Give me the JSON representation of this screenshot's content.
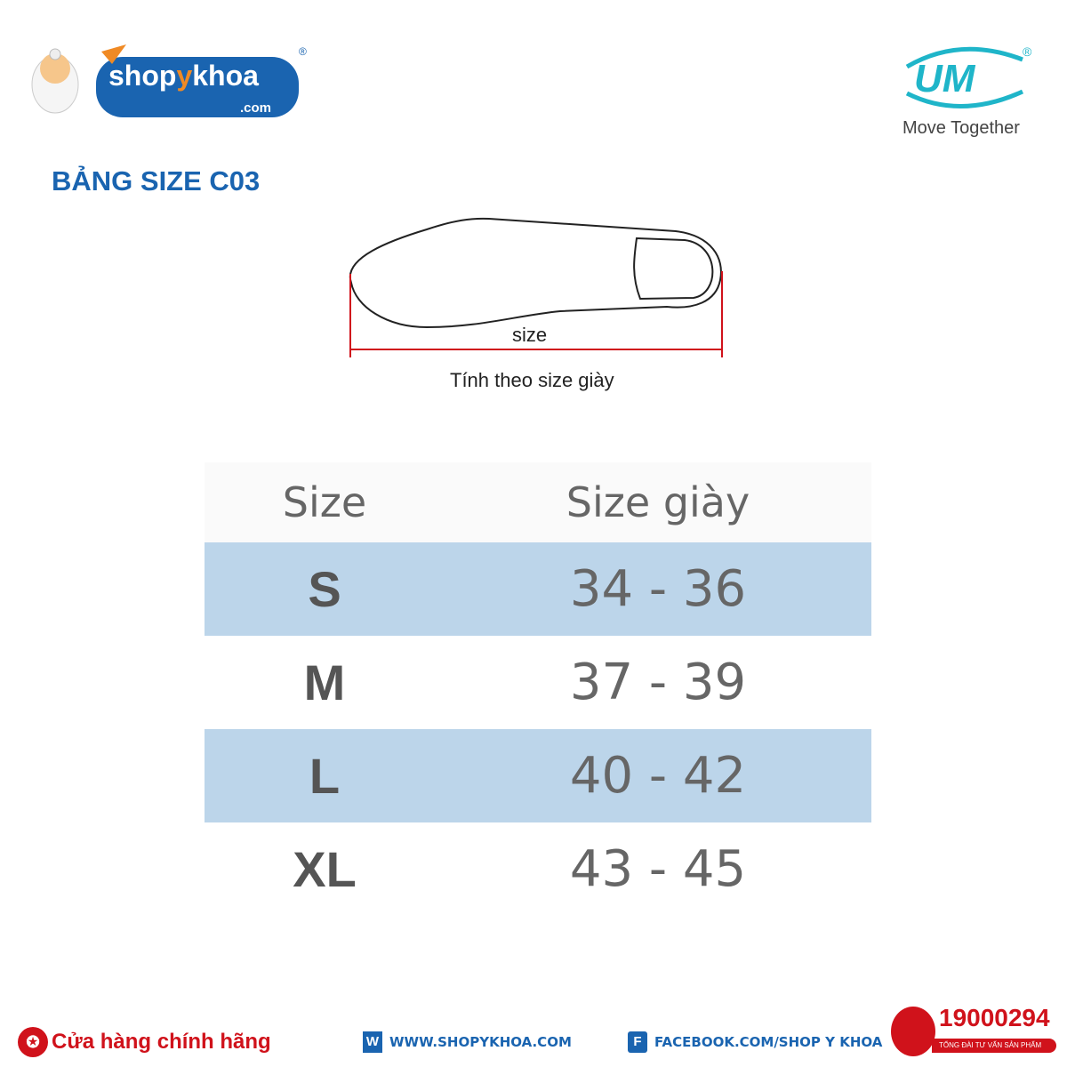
{
  "brand": {
    "name": "shopykhoa",
    "domain": ".com",
    "registered": "®"
  },
  "partner": {
    "logo_text": "UM",
    "tagline": "Move Together",
    "registered": "®"
  },
  "title": "BẢNG SIZE C03",
  "diagram": {
    "measure_label": "size",
    "note": "Tính theo size giày"
  },
  "table": {
    "headers": [
      "Size",
      "Size giày"
    ],
    "rows": [
      {
        "size": "S",
        "shoe": "34 - 36"
      },
      {
        "size": "M",
        "shoe": "37 - 39"
      },
      {
        "size": "L",
        "shoe": "40 - 42"
      },
      {
        "size": "XL",
        "shoe": "43 - 45"
      }
    ]
  },
  "footer": {
    "store": "Cửa hàng chính hãng",
    "website": "WWW.SHOPYKHOA.COM",
    "facebook": "FACEBOOK.COM/SHOP Y KHOA",
    "hotline": "19000294",
    "hotline_sub": "TỔNG ĐÀI TƯ VẤN SẢN PHẨM"
  },
  "colors": {
    "brand_blue": "#1a64b0",
    "row_blue": "#bcd5ea",
    "accent_red": "#d0121b",
    "um_teal": "#1fb5c9",
    "orange": "#f08a24"
  }
}
